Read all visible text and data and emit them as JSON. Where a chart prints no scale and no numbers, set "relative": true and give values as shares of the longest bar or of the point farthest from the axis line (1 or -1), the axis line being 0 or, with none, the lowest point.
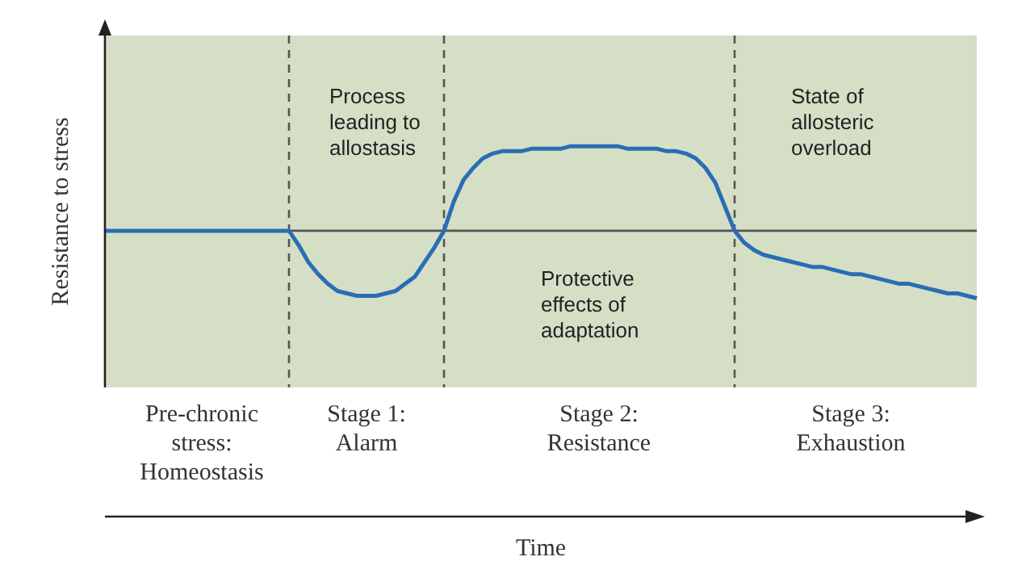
{
  "chart_data": {
    "type": "line",
    "relative": true,
    "xlabel": "Time",
    "ylabel": "Resistance to stress",
    "legend": false,
    "grid": false,
    "tick_labels": "x",
    "marker": "none",
    "categories": [
      null,
      null,
      null,
      null,
      null,
      null,
      null,
      null,
      null,
      null,
      "Pre-chronic stress: Homeostasis",
      null,
      null,
      null,
      null,
      null,
      null,
      null,
      null,
      null,
      null,
      null,
      null,
      null,
      null,
      null,
      null,
      "Stage 1: Alarm",
      null,
      null,
      null,
      null,
      null,
      null,
      null,
      null,
      null,
      null,
      null,
      null,
      null,
      null,
      null,
      null,
      null,
      null,
      null,
      null,
      null,
      null,
      null,
      "Stage 2: Resistance",
      null,
      null,
      null,
      null,
      null,
      null,
      null,
      null,
      null,
      null,
      null,
      null,
      null,
      null,
      null,
      null,
      null,
      null,
      null,
      null,
      null,
      null,
      null,
      null,
      null,
      "Stage 3: Exhaustion",
      null,
      null,
      null,
      null,
      null,
      null,
      null,
      null,
      null,
      null,
      null,
      null,
      null
    ],
    "values": [
      0.65,
      0.65,
      0.65,
      0.65,
      0.65,
      0.65,
      0.65,
      0.65,
      0.65,
      0.65,
      0.65,
      0.65,
      0.65,
      0.65,
      0.65,
      0.65,
      0.65,
      0.65,
      0.65,
      0.65,
      0.59,
      0.52,
      0.47,
      0.43,
      0.4,
      0.39,
      0.38,
      0.38,
      0.38,
      0.39,
      0.4,
      0.43,
      0.46,
      0.52,
      0.58,
      0.65,
      0.77,
      0.86,
      0.91,
      0.95,
      0.97,
      0.98,
      0.98,
      0.98,
      0.99,
      0.99,
      0.99,
      0.99,
      1,
      1,
      1,
      1,
      1,
      1,
      0.99,
      0.99,
      0.99,
      0.99,
      0.98,
      0.98,
      0.97,
      0.95,
      0.91,
      0.85,
      0.75,
      0.65,
      0.6,
      0.57,
      0.55,
      0.54,
      0.53,
      0.52,
      0.51,
      0.5,
      0.5,
      0.49,
      0.48,
      0.47,
      0.47,
      0.46,
      0.45,
      0.44,
      0.43,
      0.43,
      0.42,
      0.41,
      0.4,
      0.39,
      0.39,
      0.38,
      0.37
    ],
    "color": "#2a6db5",
    "ref_lines": [
      {
        "axis": "y",
        "value": 0.65,
        "color": "#555555",
        "line_style": "solid"
      }
    ],
    "annotations": [
      "Process leading to allostasis",
      "Protective effects of adaptation",
      "State of allosteric overload"
    ]
  }
}
